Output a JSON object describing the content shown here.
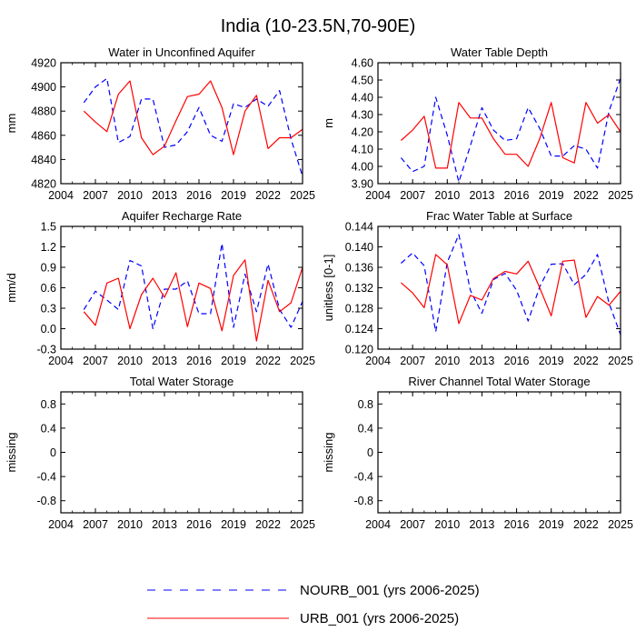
{
  "figure": {
    "title": "India (10-23.5N,70-90E)"
  },
  "legend": [
    {
      "label": "NOURB_001 (yrs 2006-2025)",
      "color": "#0000ff",
      "dash": "dashed"
    },
    {
      "label": "URB_001 (yrs 2006-2025)",
      "color": "#ff0000",
      "dash": "solid"
    }
  ],
  "chart_data": [
    {
      "type": "line",
      "title": "Water in Unconfined Aquifer",
      "ylabel": "mm",
      "xlabel": "",
      "xlim": [
        2004,
        2025
      ],
      "xticks": [
        "2004",
        "2007",
        "2010",
        "2013",
        "2016",
        "2019",
        "2022",
        "2025"
      ],
      "ylim": [
        4820,
        4920
      ],
      "yticks": [
        "4820",
        "4840",
        "4860",
        "4880",
        "4900",
        "4920"
      ],
      "x": [
        2006,
        2007,
        2008,
        2009,
        2010,
        2011,
        2012,
        2013,
        2014,
        2015,
        2016,
        2017,
        2018,
        2019,
        2020,
        2021,
        2022,
        2023,
        2024,
        2025
      ],
      "series": [
        {
          "name": "NOURB_001",
          "color": "#0000ff",
          "dash": "dashed",
          "values": [
            4887,
            4900,
            4907,
            4854,
            4859,
            4890,
            4890,
            4850,
            4852,
            4863,
            4883,
            4860,
            4855,
            4886,
            4883,
            4890,
            4884,
            4897,
            4857,
            4826
          ]
        },
        {
          "name": "URB_001",
          "color": "#ff0000",
          "dash": "solid",
          "values": [
            4880,
            4871,
            4863,
            4894,
            4905,
            4858,
            4844,
            4851,
            4872,
            4892,
            4894,
            4905,
            4883,
            4844,
            4880,
            4893,
            4849,
            4858,
            4858,
            4865
          ]
        }
      ]
    },
    {
      "type": "line",
      "title": "Water Table Depth",
      "ylabel": "m",
      "xlabel": "",
      "xlim": [
        2004,
        2025
      ],
      "xticks": [
        "2004",
        "2007",
        "2010",
        "2013",
        "2016",
        "2019",
        "2022",
        "2025"
      ],
      "ylim": [
        3.9,
        4.6
      ],
      "yticks": [
        "3.90",
        "4.00",
        "4.10",
        "4.20",
        "4.30",
        "4.40",
        "4.50",
        "4.60"
      ],
      "x": [
        2006,
        2007,
        2008,
        2009,
        2010,
        2011,
        2012,
        2013,
        2014,
        2015,
        2016,
        2017,
        2018,
        2019,
        2020,
        2021,
        2022,
        2023,
        2024,
        2025
      ],
      "series": [
        {
          "name": "NOURB_001",
          "color": "#0000ff",
          "dash": "dashed",
          "values": [
            4.05,
            3.97,
            4.0,
            4.4,
            4.18,
            3.91,
            4.12,
            4.34,
            4.21,
            4.15,
            4.16,
            4.34,
            4.22,
            4.06,
            4.06,
            4.12,
            4.1,
            3.99,
            4.32,
            4.51
          ]
        },
        {
          "name": "URB_001",
          "color": "#ff0000",
          "dash": "solid",
          "values": [
            4.15,
            4.21,
            4.29,
            3.99,
            3.99,
            4.37,
            4.28,
            4.28,
            4.16,
            4.07,
            4.07,
            4.0,
            4.16,
            4.37,
            4.05,
            4.02,
            4.37,
            4.25,
            4.3,
            4.2
          ]
        }
      ]
    },
    {
      "type": "line",
      "title": "Aquifer Recharge Rate",
      "ylabel": "mm/d",
      "xlabel": "",
      "xlim": [
        2004,
        2025
      ],
      "xticks": [
        "2004",
        "2007",
        "2010",
        "2013",
        "2016",
        "2019",
        "2022",
        "2025"
      ],
      "ylim": [
        -0.3,
        1.5
      ],
      "yticks": [
        "-0.3",
        "0.0",
        "0.3",
        "0.6",
        "0.9",
        "1.2",
        "1.5"
      ],
      "x": [
        2006,
        2007,
        2008,
        2009,
        2010,
        2011,
        2012,
        2013,
        2014,
        2015,
        2016,
        2017,
        2018,
        2019,
        2020,
        2021,
        2022,
        2023,
        2024,
        2025
      ],
      "series": [
        {
          "name": "NOURB_001",
          "color": "#0000ff",
          "dash": "dashed",
          "values": [
            0.28,
            0.55,
            0.42,
            0.28,
            1.0,
            0.92,
            0.0,
            0.58,
            0.58,
            0.7,
            0.22,
            0.22,
            1.25,
            0.02,
            0.8,
            0.25,
            0.95,
            0.28,
            0.02,
            0.4
          ]
        },
        {
          "name": "URB_001",
          "color": "#ff0000",
          "dash": "solid",
          "values": [
            0.25,
            0.05,
            0.67,
            0.74,
            0.0,
            0.5,
            0.74,
            0.46,
            0.82,
            0.03,
            0.67,
            0.59,
            -0.03,
            0.78,
            1.01,
            -0.18,
            0.71,
            0.25,
            0.38,
            0.9
          ]
        }
      ]
    },
    {
      "type": "line",
      "title": "Frac Water Table at Surface",
      "ylabel": "unitless [0-1]",
      "xlabel": "",
      "xlim": [
        2004,
        2025
      ],
      "xticks": [
        "2004",
        "2007",
        "2010",
        "2013",
        "2016",
        "2019",
        "2022",
        "2025"
      ],
      "ylim": [
        0.12,
        0.144
      ],
      "yticks": [
        "0.120",
        "0.124",
        "0.128",
        "0.132",
        "0.136",
        "0.140",
        "0.144"
      ],
      "x": [
        2006,
        2007,
        2008,
        2009,
        2010,
        2011,
        2012,
        2013,
        2014,
        2015,
        2016,
        2017,
        2018,
        2019,
        2020,
        2021,
        2022,
        2023,
        2024,
        2025
      ],
      "series": [
        {
          "name": "NOURB_001",
          "color": "#0000ff",
          "dash": "dashed",
          "values": [
            0.1368,
            0.1388,
            0.1363,
            0.1234,
            0.137,
            0.1424,
            0.1315,
            0.127,
            0.1336,
            0.1348,
            0.1315,
            0.1255,
            0.1322,
            0.1366,
            0.1367,
            0.1326,
            0.1346,
            0.1385,
            0.129,
            0.1228
          ]
        },
        {
          "name": "URB_001",
          "color": "#ff0000",
          "dash": "solid",
          "values": [
            0.133,
            0.131,
            0.1281,
            0.1385,
            0.1365,
            0.125,
            0.1305,
            0.1296,
            0.1338,
            0.1352,
            0.1347,
            0.1372,
            0.132,
            0.1265,
            0.1372,
            0.1374,
            0.1262,
            0.1303,
            0.1286,
            0.1313
          ]
        }
      ]
    },
    {
      "type": "line",
      "title": "Total Water Storage",
      "ylabel": "missing",
      "xlabel": "",
      "xlim": [
        2004,
        2025
      ],
      "xticks": [
        "2004",
        "2007",
        "2010",
        "2013",
        "2016",
        "2019",
        "2022",
        "2025"
      ],
      "ylim": [
        -1,
        1
      ],
      "yticks": [
        "-0.8",
        "-0.4",
        "0",
        "0.4",
        "0.8"
      ],
      "x": [],
      "series": []
    },
    {
      "type": "line",
      "title": "River Channel Total Water Storage",
      "ylabel": "missing",
      "xlabel": "",
      "xlim": [
        2004,
        2025
      ],
      "xticks": [
        "2004",
        "2007",
        "2010",
        "2013",
        "2016",
        "2019",
        "2022",
        "2025"
      ],
      "ylim": [
        -1,
        1
      ],
      "yticks": [
        "-0.8",
        "-0.4",
        "0",
        "0.4",
        "0.8"
      ],
      "x": [],
      "series": []
    }
  ]
}
